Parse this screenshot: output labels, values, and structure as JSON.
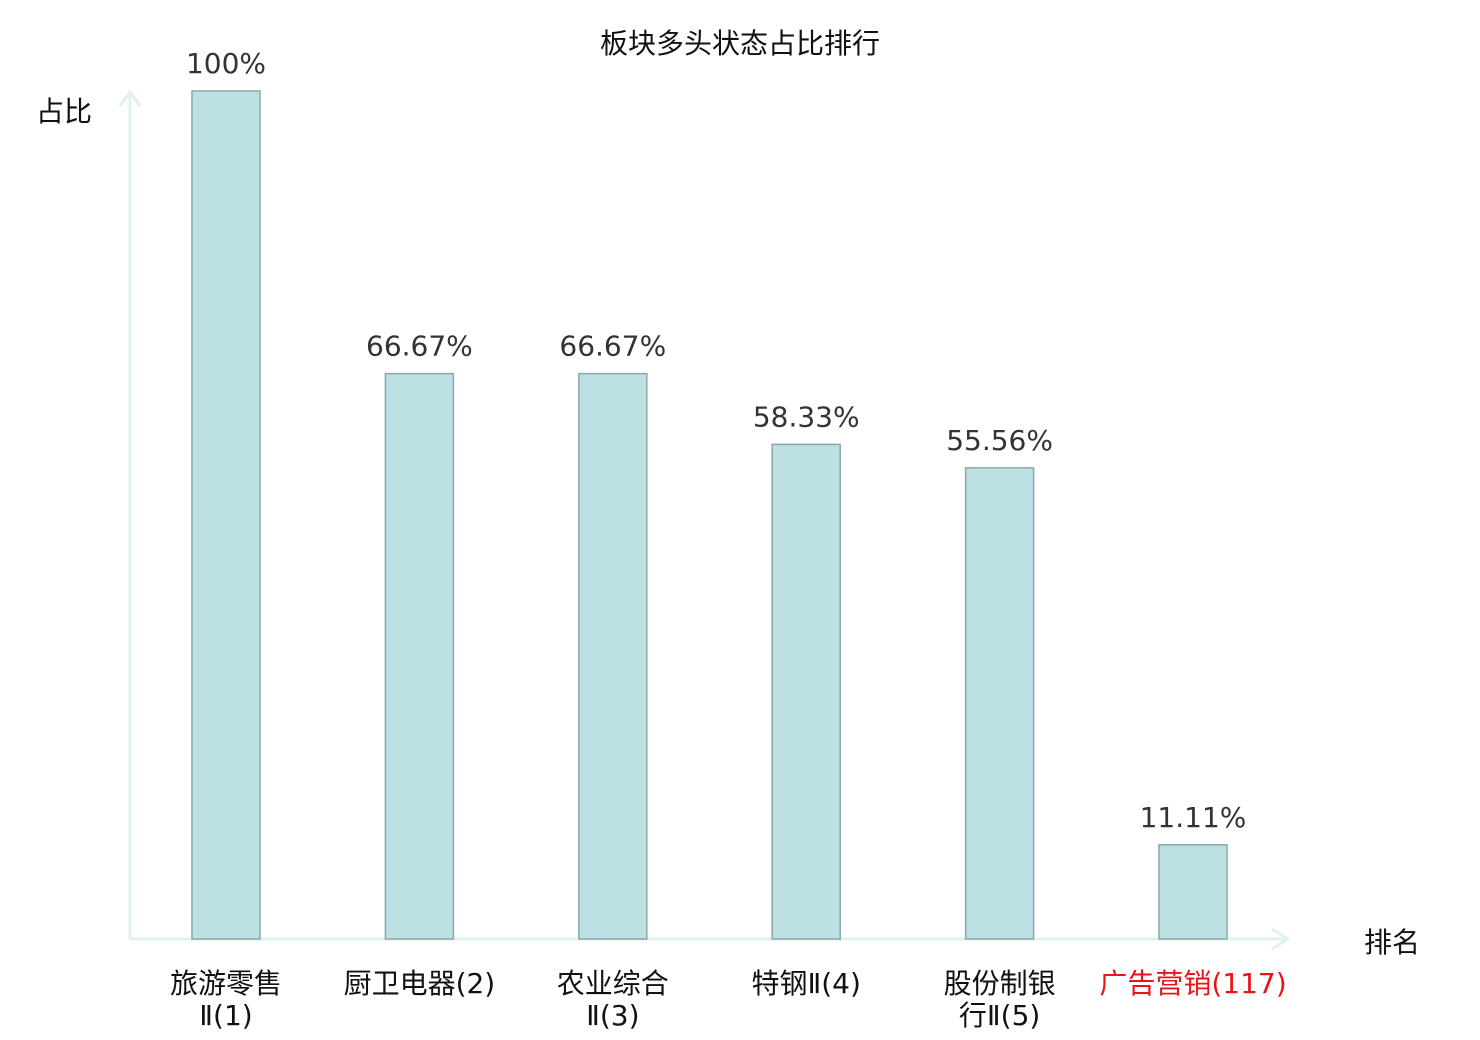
{
  "chart_data": {
    "type": "bar",
    "title": "板块多头状态占比排行",
    "ylabel": "占比",
    "xlabel": "排名",
    "ylim": [
      0,
      100
    ],
    "grid": false,
    "categories": [
      [
        "旅游零售",
        "Ⅱ(1)"
      ],
      [
        "厨卫电器(2)"
      ],
      [
        "农业综合",
        "Ⅱ(3)"
      ],
      [
        "特钢Ⅱ(4)"
      ],
      [
        "股份制银",
        "行Ⅱ(5)"
      ],
      [
        "广告营销(117)"
      ]
    ],
    "values": [
      100,
      66.67,
      66.67,
      58.33,
      55.56,
      11.11
    ],
    "data_labels": [
      "100%",
      "66.67%",
      "66.67%",
      "58.33%",
      "55.56%",
      "11.11%"
    ],
    "highlight_index": 5,
    "colors": {
      "bar_fill": "#bce0e3",
      "bar_stroke": "#8aa8aa",
      "axis": "#dff2f0",
      "text": "#333333",
      "highlight": "#e8141b"
    }
  }
}
